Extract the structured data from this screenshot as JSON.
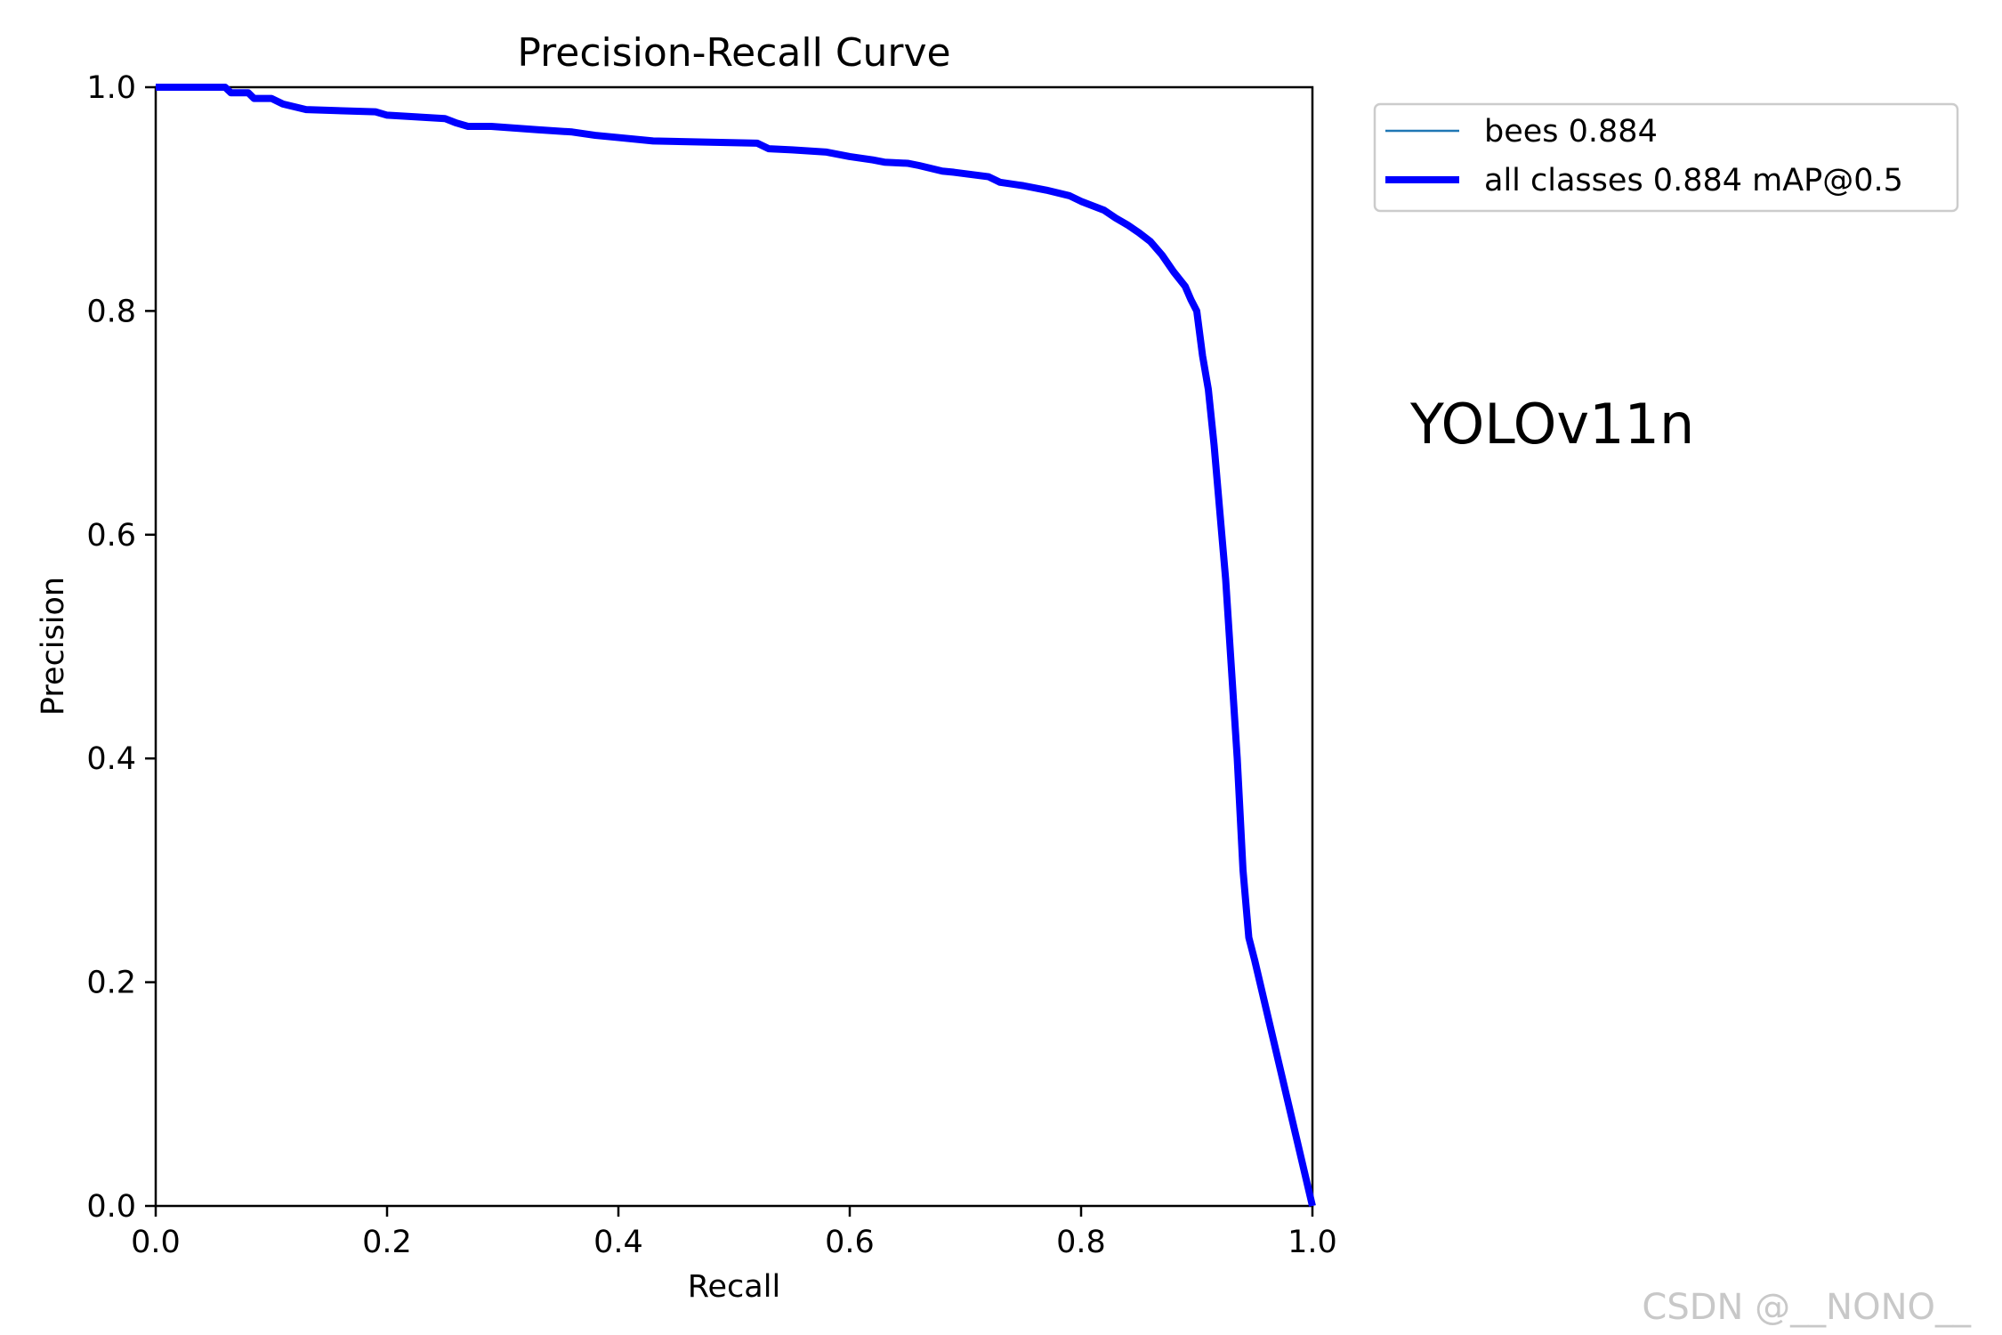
{
  "chart_data": {
    "type": "line",
    "title": "Precision-Recall Curve",
    "xlabel": "Recall",
    "ylabel": "Precision",
    "xlim": [
      0.0,
      1.0
    ],
    "ylim": [
      0.0,
      1.0
    ],
    "xticks": [
      "0.0",
      "0.2",
      "0.4",
      "0.6",
      "0.8",
      "1.0"
    ],
    "yticks": [
      "0.0",
      "0.2",
      "0.4",
      "0.6",
      "0.8",
      "1.0"
    ],
    "grid": false,
    "legend_position": "outside-top-right",
    "series": [
      {
        "name": "bees 0.884",
        "color": "#1f77b4",
        "line": "thin",
        "x": [
          0.0,
          0.06,
          0.065,
          0.08,
          0.085,
          0.1,
          0.11,
          0.13,
          0.19,
          0.2,
          0.25,
          0.26,
          0.27,
          0.29,
          0.33,
          0.36,
          0.38,
          0.4,
          0.43,
          0.52,
          0.53,
          0.55,
          0.58,
          0.6,
          0.62,
          0.63,
          0.65,
          0.66,
          0.68,
          0.69,
          0.72,
          0.73,
          0.75,
          0.77,
          0.79,
          0.8,
          0.82,
          0.83,
          0.84,
          0.85,
          0.86,
          0.87,
          0.88,
          0.89,
          0.895,
          0.9,
          0.905,
          0.91,
          0.915,
          0.92,
          0.925,
          0.93,
          0.935,
          0.94,
          0.945,
          0.95,
          1.0
        ],
        "y": [
          1.0,
          1.0,
          0.995,
          0.995,
          0.99,
          0.99,
          0.985,
          0.98,
          0.978,
          0.975,
          0.972,
          0.968,
          0.965,
          0.965,
          0.962,
          0.96,
          0.957,
          0.955,
          0.952,
          0.95,
          0.945,
          0.944,
          0.942,
          0.938,
          0.935,
          0.933,
          0.932,
          0.93,
          0.925,
          0.924,
          0.92,
          0.915,
          0.912,
          0.908,
          0.903,
          0.898,
          0.89,
          0.883,
          0.877,
          0.87,
          0.862,
          0.85,
          0.835,
          0.822,
          0.81,
          0.8,
          0.76,
          0.73,
          0.68,
          0.62,
          0.56,
          0.48,
          0.4,
          0.3,
          0.24,
          0.22,
          0.0
        ]
      },
      {
        "name": "all classes 0.884 mAP@0.5",
        "color": "#0000ff",
        "line": "thick",
        "x": [
          0.0,
          0.06,
          0.065,
          0.08,
          0.085,
          0.1,
          0.11,
          0.13,
          0.19,
          0.2,
          0.25,
          0.26,
          0.27,
          0.29,
          0.33,
          0.36,
          0.38,
          0.4,
          0.43,
          0.52,
          0.53,
          0.55,
          0.58,
          0.6,
          0.62,
          0.63,
          0.65,
          0.66,
          0.68,
          0.69,
          0.72,
          0.73,
          0.75,
          0.77,
          0.79,
          0.8,
          0.82,
          0.83,
          0.84,
          0.85,
          0.86,
          0.87,
          0.88,
          0.89,
          0.895,
          0.9,
          0.905,
          0.91,
          0.915,
          0.92,
          0.925,
          0.93,
          0.935,
          0.94,
          0.945,
          0.95,
          1.0
        ],
        "y": [
          1.0,
          1.0,
          0.995,
          0.995,
          0.99,
          0.99,
          0.985,
          0.98,
          0.978,
          0.975,
          0.972,
          0.968,
          0.965,
          0.965,
          0.962,
          0.96,
          0.957,
          0.955,
          0.952,
          0.95,
          0.945,
          0.944,
          0.942,
          0.938,
          0.935,
          0.933,
          0.932,
          0.93,
          0.925,
          0.924,
          0.92,
          0.915,
          0.912,
          0.908,
          0.903,
          0.898,
          0.89,
          0.883,
          0.877,
          0.87,
          0.862,
          0.85,
          0.835,
          0.822,
          0.81,
          0.8,
          0.76,
          0.73,
          0.68,
          0.62,
          0.56,
          0.48,
          0.4,
          0.3,
          0.24,
          0.22,
          0.0
        ]
      }
    ],
    "annotations": [
      "YOLOv11n"
    ]
  },
  "watermark": "CSDN @__NONO__"
}
